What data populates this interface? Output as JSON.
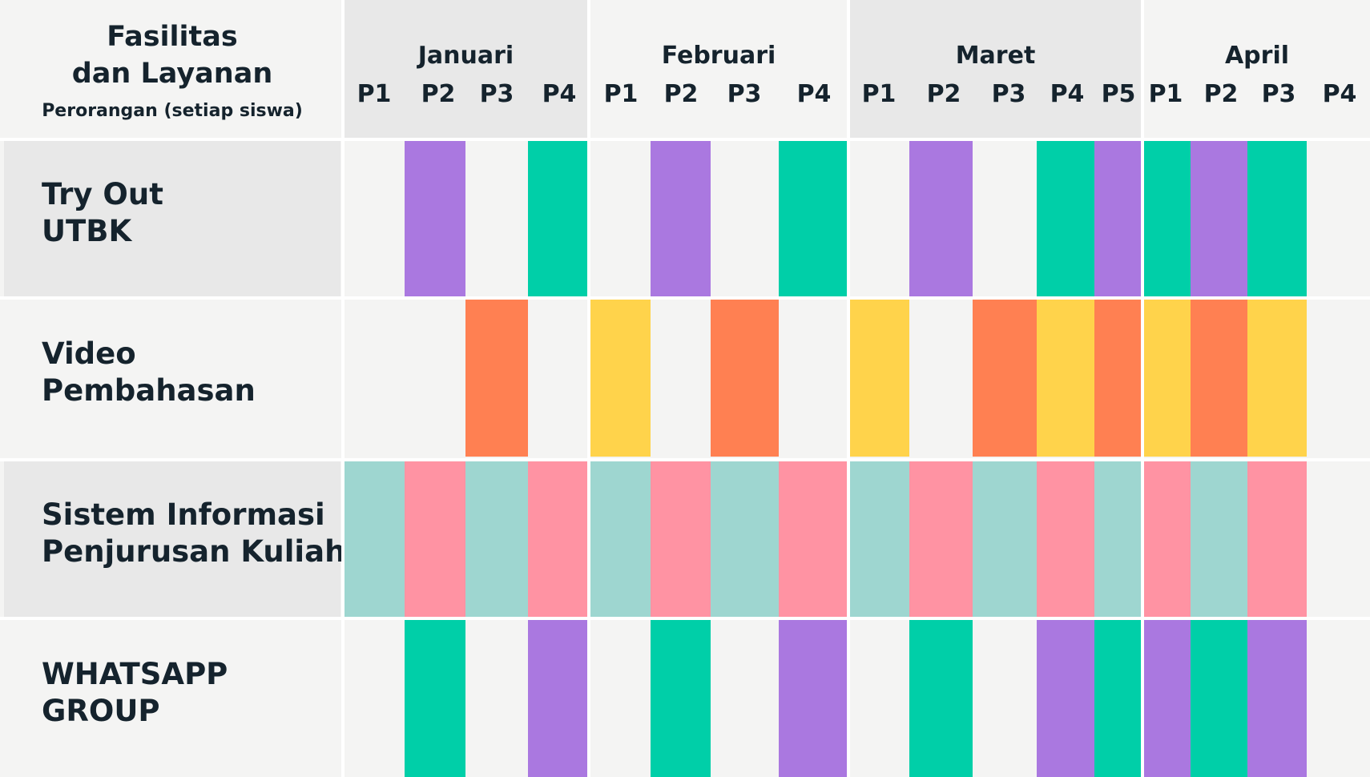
{
  "header": {
    "title_line1": "Fasilitas",
    "title_line2": "dan Layanan",
    "subtitle": "Perorangan (setiap siswa)"
  },
  "months": [
    {
      "name": "Januari",
      "periods": [
        "P1",
        "P2",
        "P3",
        "P4"
      ]
    },
    {
      "name": "Februari",
      "periods": [
        "P1",
        "P2",
        "P3",
        "P4"
      ]
    },
    {
      "name": "Maret",
      "periods": [
        "P1",
        "P2",
        "P3",
        "P4",
        "P5"
      ]
    },
    {
      "name": "April",
      "periods": [
        "P1",
        "P2",
        "P3",
        "P4"
      ]
    }
  ],
  "colors": {
    "purple": "#aa78e0",
    "green": "#00cfa8",
    "orange": "#ff8052",
    "yellow": "#ffd34b",
    "teal": "#9ed6d0",
    "pink": "#ff93a3",
    "gray": "#e8e8e8",
    "light": "#f4f4f3"
  },
  "rows": [
    {
      "line1": "Try Out",
      "line2": "UTBK",
      "bg": "gray",
      "cells": [
        "",
        "purple",
        "",
        "green",
        "",
        "purple",
        "",
        "green",
        "",
        "purple",
        "",
        "green",
        "purple",
        "green",
        "purple",
        "green",
        ""
      ]
    },
    {
      "line1": "Video",
      "line2": "Pembahasan",
      "bg": "light",
      "cells": [
        "",
        "",
        "orange",
        "",
        "yellow",
        "",
        "orange",
        "",
        "yellow",
        "",
        "orange",
        "yellow",
        "orange",
        "yellow",
        "orange",
        "yellow",
        ""
      ]
    },
    {
      "line1": "Sistem Informasi",
      "line2": "Penjurusan Kuliah",
      "bg": "gray",
      "cells": [
        "teal",
        "pink",
        "teal",
        "pink",
        "teal",
        "pink",
        "teal",
        "pink",
        "teal",
        "pink",
        "teal",
        "pink",
        "teal",
        "pink",
        "teal",
        "pink",
        ""
      ]
    },
    {
      "line1": "WHATSAPP",
      "line2": "GROUP",
      "bg": "light",
      "cells": [
        "",
        "green",
        "",
        "purple",
        "",
        "green",
        "",
        "purple",
        "",
        "green",
        "",
        "purple",
        "green",
        "purple",
        "green",
        "purple",
        ""
      ]
    }
  ]
}
